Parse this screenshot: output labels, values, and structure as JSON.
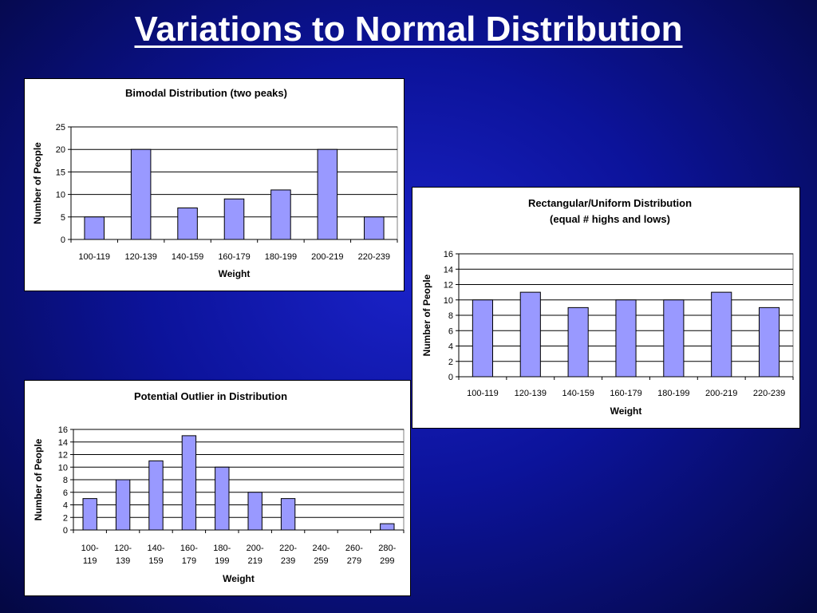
{
  "slide": {
    "title": "Variations to Normal Distribution"
  },
  "colors": {
    "bar_fill": "#9999ff",
    "bar_stroke": "#000000",
    "background": "#0c139a"
  },
  "chart_data": [
    {
      "type": "bar",
      "title": "Bimodal Distribution (two peaks)",
      "xlabel": "Weight",
      "ylabel": "Number of People",
      "categories": [
        "100-119",
        "120-139",
        "140-159",
        "160-179",
        "180-199",
        "200-219",
        "220-239"
      ],
      "values": [
        5,
        20,
        7,
        9,
        11,
        20,
        5
      ],
      "ylim": [
        0,
        25
      ],
      "yticks": [
        0,
        5,
        10,
        15,
        20,
        25
      ],
      "grid": true
    },
    {
      "type": "bar",
      "title": "Rectangular/Uniform Distribution",
      "subtitle": "(equal # highs and lows)",
      "xlabel": "Weight",
      "ylabel": "Number of People",
      "categories": [
        "100-119",
        "120-139",
        "140-159",
        "160-179",
        "180-199",
        "200-219",
        "220-239"
      ],
      "values": [
        10,
        11,
        9,
        10,
        10,
        11,
        9
      ],
      "ylim": [
        0,
        16
      ],
      "yticks": [
        0,
        2,
        4,
        6,
        8,
        10,
        12,
        14,
        16
      ],
      "grid": true
    },
    {
      "type": "bar",
      "title": "Potential Outlier in Distribution",
      "xlabel": "Weight",
      "ylabel": "Number of People",
      "categories": [
        "100-119",
        "120-139",
        "140-159",
        "160-179",
        "180-199",
        "200-219",
        "220-239",
        "240-259",
        "260-279",
        "280-299"
      ],
      "values": [
        5,
        8,
        11,
        15,
        10,
        6,
        5,
        0,
        0,
        1
      ],
      "ylim": [
        0,
        16
      ],
      "yticks": [
        0,
        2,
        4,
        6,
        8,
        10,
        12,
        14,
        16
      ],
      "grid": true,
      "wrap_categories": true
    }
  ]
}
